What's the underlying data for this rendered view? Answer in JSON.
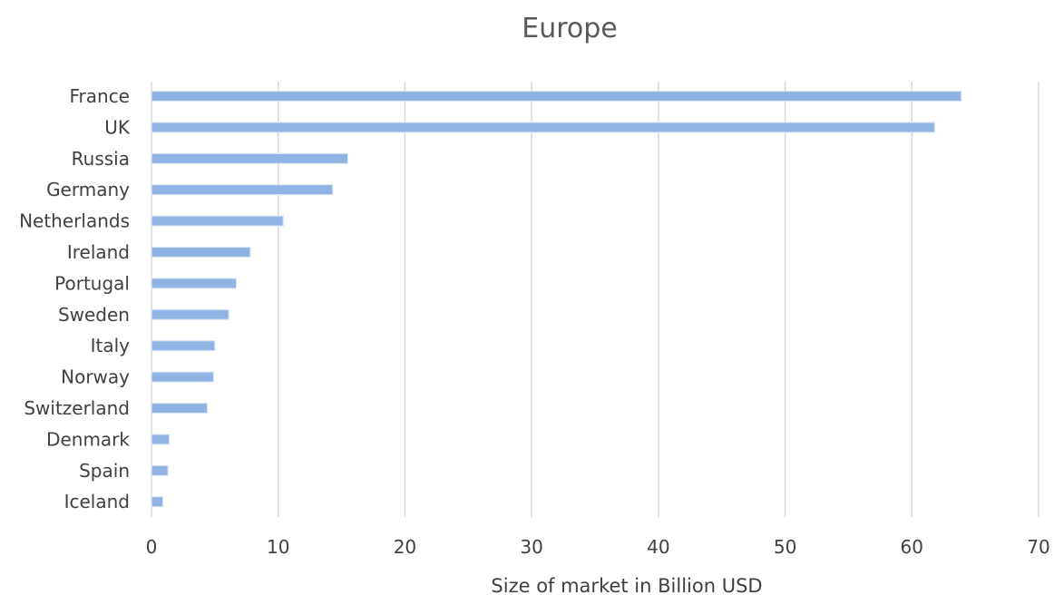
{
  "chart_data": {
    "type": "bar",
    "orientation": "horizontal",
    "title": "Europe",
    "xlabel": "Size of market in Billion USD",
    "ylabel": "",
    "categories": [
      "France",
      "UK",
      "Russia",
      "Germany",
      "Netherlands",
      "Ireland",
      "Portugal",
      "Sweden",
      "Italy",
      "Norway",
      "Switzerland",
      "Denmark",
      "Spain",
      "Iceland"
    ],
    "values": [
      63.9,
      61.8,
      15.5,
      14.3,
      10.4,
      7.8,
      6.7,
      6.1,
      5.0,
      4.9,
      4.4,
      1.4,
      1.3,
      0.9
    ],
    "xlim": [
      0,
      70
    ],
    "xticks": [
      0,
      10,
      20,
      30,
      40,
      50,
      60,
      70
    ],
    "grid": "vertical",
    "legend": "none",
    "colors": {
      "bar": "#8fb4e3",
      "bar_edge": "#dbe6f4",
      "grid": "#d9d9d9"
    }
  }
}
